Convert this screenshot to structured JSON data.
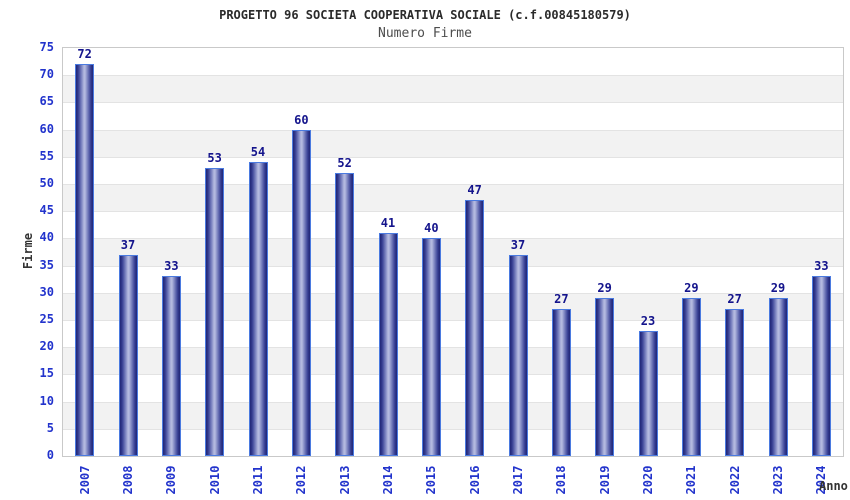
{
  "chart_data": {
    "type": "bar",
    "title": "PROGETTO 96 SOCIETA COOPERATIVA SOCIALE (c.f.00845180579)",
    "subtitle": "Numero Firme",
    "xlabel": "Anno",
    "ylabel": "Firme",
    "categories": [
      "2007",
      "2008",
      "2009",
      "2010",
      "2011",
      "2012",
      "2013",
      "2014",
      "2015",
      "2016",
      "2017",
      "2018",
      "2019",
      "2020",
      "2021",
      "2022",
      "2023",
      "2024"
    ],
    "values": [
      72,
      37,
      33,
      53,
      54,
      60,
      52,
      41,
      40,
      47,
      37,
      27,
      29,
      23,
      29,
      27,
      29,
      33
    ],
    "ylim": [
      0,
      75
    ],
    "ytick_step": 5,
    "grid": "horizontal-bands-alternating",
    "legend": "none"
  },
  "colors": {
    "title": "#2b2b2b",
    "subtitle": "#4d4d4d",
    "axis_title": "#333333",
    "tick_label": "#2233cc",
    "value_label": "#14148c",
    "bar_border": "#4a7ae0",
    "bar_dark": "#252b7d",
    "bar_mid2": "#3f479a",
    "bar_mid": "#7d85c1",
    "bar_light": "#b3b9df",
    "band_gray": "#f2f2f2",
    "band_white": "#ffffff",
    "plot_border": "#c9c9c9",
    "gridline": "#e3e3e3"
  }
}
